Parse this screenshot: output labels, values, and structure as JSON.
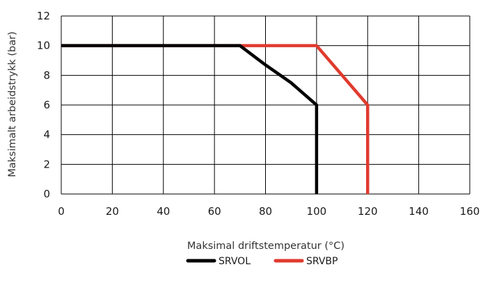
{
  "chart_data": {
    "type": "line",
    "title": "",
    "xlabel": "Maksimal driftstemperatur (°C)",
    "ylabel": "Maksimalt arbeidstrykk (bar)",
    "xlim": [
      0,
      160
    ],
    "ylim": [
      0,
      12
    ],
    "x_ticks": [
      "0",
      "20",
      "40",
      "60",
      "80",
      "100",
      "120",
      "140",
      "160"
    ],
    "y_ticks": [
      "0",
      "2",
      "4",
      "6",
      "8",
      "10",
      "12"
    ],
    "grid": true,
    "legend_position": "bottom-center",
    "series": [
      {
        "name": "SRVBP",
        "color": "#e03a2e",
        "points": [
          [
            0,
            10
          ],
          [
            100,
            10
          ],
          [
            120,
            6
          ],
          [
            120,
            0
          ]
        ]
      },
      {
        "name": "SRVOL",
        "color": "#000000",
        "points": [
          [
            0,
            10
          ],
          [
            70,
            10
          ],
          [
            80,
            8.7
          ],
          [
            90,
            7.5
          ],
          [
            100,
            6
          ],
          [
            100,
            0
          ]
        ]
      }
    ],
    "legend_order": [
      "SRVOL",
      "SRVBP"
    ]
  }
}
